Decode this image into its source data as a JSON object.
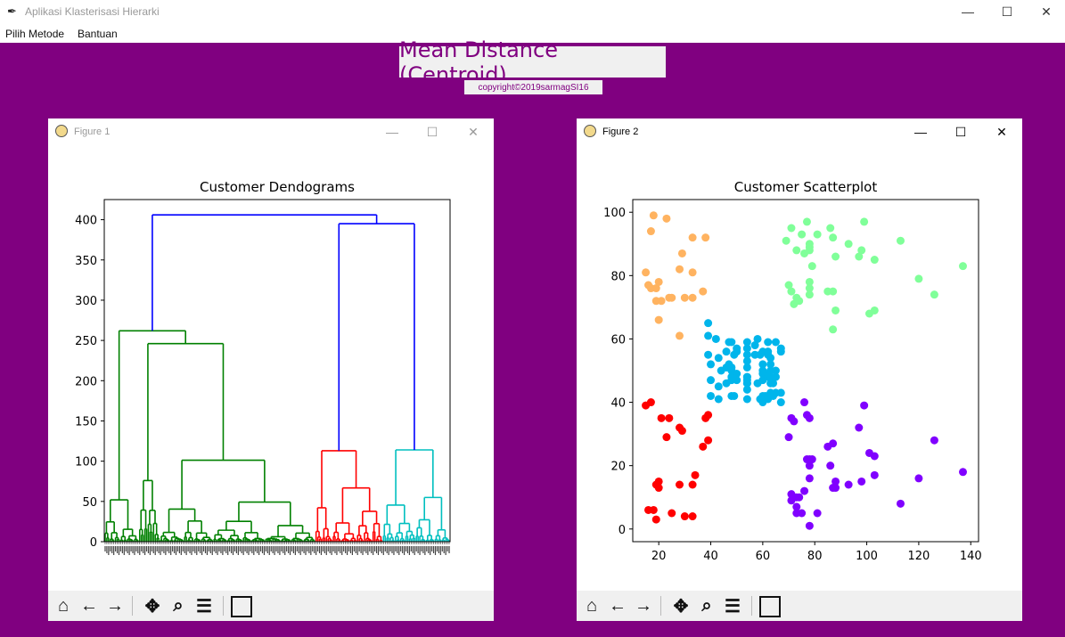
{
  "app": {
    "icon": "feather-icon",
    "title": "Aplikasi Klasterisasi Hierarki",
    "minimize": "—",
    "maximize": "☐",
    "close": "✕"
  },
  "menu": {
    "items": [
      "Pilih Metode",
      "Bantuan"
    ]
  },
  "heading": "Mean Distance (Centroid)",
  "copyright": "copyright©2019sarmagSI16",
  "colors": {
    "background": "#800080",
    "green": "#008000",
    "red": "#ff0000",
    "cyan": "#00bfbf",
    "blue": "#0000ff",
    "orange": "#ffb360",
    "mint": "#80ff99",
    "skyblue": "#00b5eb",
    "violet": "#8000ff",
    "redpts": "#ff0000"
  },
  "figure1": {
    "title": "Figure 1",
    "controls": {
      "minimize": "—",
      "maximize": "☐",
      "close": "✕"
    },
    "toolbar": [
      "home-icon",
      "back-icon",
      "forward-icon",
      "pan-icon",
      "zoom-icon",
      "configure-icon",
      "save-icon"
    ]
  },
  "figure2": {
    "title": "Figure 2",
    "controls": {
      "minimize": "—",
      "maximize": "☐",
      "close": "✕"
    },
    "toolbar": [
      "home-icon",
      "back-icon",
      "forward-icon",
      "pan-icon",
      "zoom-icon",
      "configure-icon",
      "save-icon"
    ]
  },
  "chart_data": [
    {
      "type": "dendrogram",
      "title": "Customer Dendograms",
      "xlabel": "",
      "ylabel": "",
      "ylim": [
        0,
        425
      ],
      "yticks": [
        0,
        50,
        100,
        150,
        200,
        250,
        300,
        350,
        400
      ],
      "leaf_count": 200,
      "top_merges": [
        {
          "left_cluster": "green",
          "right_cluster": "red+cyan",
          "height": 406,
          "color": "blue"
        },
        {
          "left_cluster": "red",
          "right_cluster": "cyan",
          "height": 395,
          "color": "blue"
        },
        {
          "cluster": "green",
          "height": 262
        },
        {
          "cluster": "green-sub",
          "height": 246
        },
        {
          "cluster": "red",
          "height": 113
        },
        {
          "cluster": "cyan",
          "height": 114
        }
      ],
      "clusters": [
        {
          "color": "green",
          "leaves": 122
        },
        {
          "color": "red",
          "leaves": 39
        },
        {
          "color": "cyan",
          "leaves": 39
        }
      ]
    },
    {
      "type": "scatter",
      "title": "Customer Scatterplot",
      "xlabel": "",
      "ylabel": "",
      "xlim": [
        10,
        143
      ],
      "ylim": [
        -4,
        104
      ],
      "xticks": [
        20,
        40,
        60,
        80,
        100,
        120,
        140
      ],
      "yticks": [
        0,
        20,
        40,
        60,
        80,
        100
      ],
      "series": [
        {
          "color": "#ffb360",
          "points": [
            [
              15,
              81
            ],
            [
              16,
              77
            ],
            [
              17,
              76
            ],
            [
              17,
              94
            ],
            [
              18,
              99
            ],
            [
              19,
              72
            ],
            [
              19,
              76
            ],
            [
              20,
              66
            ],
            [
              20,
              78
            ],
            [
              21,
              72
            ],
            [
              23,
              98
            ],
            [
              24,
              73
            ],
            [
              25,
              73
            ],
            [
              28,
              82
            ],
            [
              28,
              61
            ],
            [
              29,
              87
            ],
            [
              30,
              73
            ],
            [
              33,
              73
            ],
            [
              33,
              92
            ],
            [
              33,
              81
            ],
            [
              37,
              75
            ],
            [
              38,
              92
            ]
          ]
        },
        {
          "color": "#80ff99",
          "points": [
            [
              69,
              91
            ],
            [
              70,
              77
            ],
            [
              71,
              95
            ],
            [
              71,
              75
            ],
            [
              72,
              71
            ],
            [
              73,
              73
            ],
            [
              73,
              88
            ],
            [
              74,
              72
            ],
            [
              75,
              93
            ],
            [
              76,
              87
            ],
            [
              77,
              97
            ],
            [
              78,
              74
            ],
            [
              78,
              78
            ],
            [
              78,
              88
            ],
            [
              78,
              89
            ],
            [
              78,
              90
            ],
            [
              78,
              76
            ],
            [
              79,
              83
            ],
            [
              81,
              93
            ],
            [
              85,
              75
            ],
            [
              86,
              95
            ],
            [
              87,
              75
            ],
            [
              87,
              92
            ],
            [
              87,
              63
            ],
            [
              88,
              69
            ],
            [
              88,
              86
            ],
            [
              93,
              90
            ],
            [
              97,
              86
            ],
            [
              98,
              88
            ],
            [
              99,
              97
            ],
            [
              101,
              68
            ],
            [
              103,
              69
            ],
            [
              103,
              85
            ],
            [
              113,
              91
            ],
            [
              120,
              79
            ],
            [
              126,
              74
            ],
            [
              137,
              83
            ]
          ]
        },
        {
          "color": "#00b5eb",
          "points": [
            [
              39,
              65
            ],
            [
              39,
              61
            ],
            [
              39,
              55
            ],
            [
              40,
              47
            ],
            [
              40,
              42
            ],
            [
              40,
              52
            ],
            [
              42,
              60
            ],
            [
              43,
              54
            ],
            [
              43,
              45
            ],
            [
              43,
              41
            ],
            [
              44,
              50
            ],
            [
              46,
              51
            ],
            [
              46,
              46
            ],
            [
              46,
              56
            ],
            [
              47,
              52
            ],
            [
              47,
              59
            ],
            [
              48,
              51
            ],
            [
              48,
              59
            ],
            [
              48,
              50
            ],
            [
              48,
              48
            ],
            [
              48,
              47
            ],
            [
              48,
              42
            ],
            [
              49,
              55
            ],
            [
              49,
              42
            ],
            [
              50,
              56
            ],
            [
              50,
              49
            ],
            [
              50,
              47
            ],
            [
              50,
              57
            ],
            [
              54,
              47
            ],
            [
              54,
              53
            ],
            [
              54,
              59
            ],
            [
              54,
              48
            ],
            [
              54,
              46
            ],
            [
              54,
              51
            ],
            [
              54,
              55
            ],
            [
              54,
              41
            ],
            [
              54,
              44
            ],
            [
              54,
              57
            ],
            [
              54,
              46
            ],
            [
              54,
              48
            ],
            [
              57,
              58
            ],
            [
              57,
              55
            ],
            [
              58,
              60
            ],
            [
              58,
              46
            ],
            [
              59,
              55
            ],
            [
              59,
              41
            ],
            [
              60,
              49
            ],
            [
              60,
              40
            ],
            [
              60,
              42
            ],
            [
              60,
              52
            ],
            [
              60,
              47
            ],
            [
              60,
              50
            ],
            [
              60,
              41
            ],
            [
              60,
              56
            ],
            [
              61,
              42
            ],
            [
              61,
              49
            ],
            [
              62,
              41
            ],
            [
              62,
              48
            ],
            [
              62,
              59
            ],
            [
              62,
              55
            ],
            [
              62,
              56
            ],
            [
              62,
              42
            ],
            [
              63,
              50
            ],
            [
              63,
              46
            ],
            [
              63,
              43
            ],
            [
              63,
              48
            ],
            [
              63,
              52
            ],
            [
              63,
              54
            ],
            [
              64,
              42
            ],
            [
              64,
              46
            ],
            [
              65,
              48
            ],
            [
              65,
              50
            ],
            [
              65,
              43
            ],
            [
              65,
              59
            ],
            [
              67,
              43
            ],
            [
              67,
              57
            ],
            [
              67,
              56
            ],
            [
              67,
              40
            ]
          ]
        },
        {
          "color": "#8000ff",
          "points": [
            [
              70,
              29
            ],
            [
              71,
              35
            ],
            [
              71,
              11
            ],
            [
              71,
              9
            ],
            [
              72,
              34
            ],
            [
              73,
              5
            ],
            [
              73,
              7
            ],
            [
              73,
              10
            ],
            [
              74,
              10
            ],
            [
              75,
              5
            ],
            [
              76,
              40
            ],
            [
              76,
              12
            ],
            [
              77,
              36
            ],
            [
              77,
              22
            ],
            [
              78,
              1
            ],
            [
              78,
              16
            ],
            [
              78,
              35
            ],
            [
              78,
              20
            ],
            [
              78,
              22
            ],
            [
              79,
              22
            ],
            [
              81,
              5
            ],
            [
              85,
              26
            ],
            [
              86,
              20
            ],
            [
              87,
              27
            ],
            [
              87,
              13
            ],
            [
              88,
              13
            ],
            [
              88,
              15
            ],
            [
              93,
              14
            ],
            [
              97,
              32
            ],
            [
              98,
              15
            ],
            [
              99,
              39
            ],
            [
              101,
              24
            ],
            [
              103,
              17
            ],
            [
              103,
              23
            ],
            [
              113,
              8
            ],
            [
              120,
              16
            ],
            [
              126,
              28
            ],
            [
              137,
              18
            ]
          ]
        },
        {
          "color": "#ff0000",
          "points": [
            [
              15,
              39
            ],
            [
              16,
              6
            ],
            [
              17,
              40
            ],
            [
              18,
              6
            ],
            [
              19,
              3
            ],
            [
              19,
              14
            ],
            [
              20,
              15
            ],
            [
              20,
              13
            ],
            [
              21,
              35
            ],
            [
              23,
              29
            ],
            [
              24,
              35
            ],
            [
              25,
              5
            ],
            [
              28,
              14
            ],
            [
              28,
              32
            ],
            [
              29,
              31
            ],
            [
              30,
              4
            ],
            [
              33,
              4
            ],
            [
              33,
              14
            ],
            [
              34,
              17
            ],
            [
              37,
              26
            ],
            [
              38,
              35
            ],
            [
              39,
              36
            ],
            [
              39,
              28
            ]
          ]
        }
      ]
    }
  ]
}
